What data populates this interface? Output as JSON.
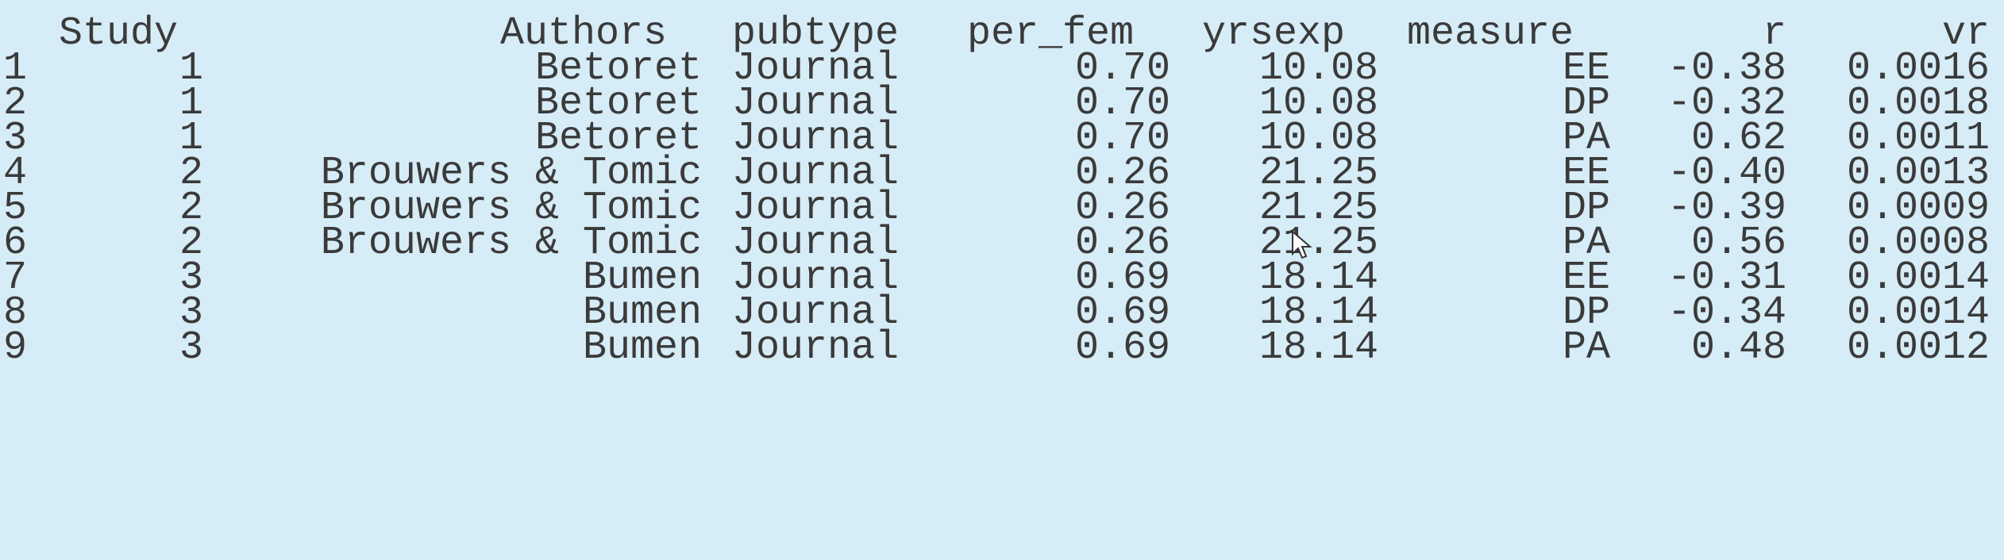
{
  "table": {
    "headers": {
      "study": "Study",
      "authors": "Authors",
      "pubtype": "pubtype",
      "per_fem": "per_fem",
      "yrsexp": "yrsexp",
      "measure": "measure",
      "r": "r",
      "vr": "vr"
    },
    "rows": [
      {
        "n": "1",
        "study": "1",
        "authors": "Betoret",
        "pubtype": "Journal",
        "per_fem": "0.70",
        "yrsexp": "10.08",
        "measure": "EE",
        "r": "-0.38",
        "vr": "0.0016"
      },
      {
        "n": "2",
        "study": "1",
        "authors": "Betoret",
        "pubtype": "Journal",
        "per_fem": "0.70",
        "yrsexp": "10.08",
        "measure": "DP",
        "r": "-0.32",
        "vr": "0.0018"
      },
      {
        "n": "3",
        "study": "1",
        "authors": "Betoret",
        "pubtype": "Journal",
        "per_fem": "0.70",
        "yrsexp": "10.08",
        "measure": "PA",
        "r": "0.62",
        "vr": "0.0011"
      },
      {
        "n": "4",
        "study": "2",
        "authors": "Brouwers & Tomic",
        "pubtype": "Journal",
        "per_fem": "0.26",
        "yrsexp": "21.25",
        "measure": "EE",
        "r": "-0.40",
        "vr": "0.0013"
      },
      {
        "n": "5",
        "study": "2",
        "authors": "Brouwers & Tomic",
        "pubtype": "Journal",
        "per_fem": "0.26",
        "yrsexp": "21.25",
        "measure": "DP",
        "r": "-0.39",
        "vr": "0.0009"
      },
      {
        "n": "6",
        "study": "2",
        "authors": "Brouwers & Tomic",
        "pubtype": "Journal",
        "per_fem": "0.26",
        "yrsexp": "21.25",
        "measure": "PA",
        "r": "0.56",
        "vr": "0.0008"
      },
      {
        "n": "7",
        "study": "3",
        "authors": "Bumen",
        "pubtype": "Journal",
        "per_fem": "0.69",
        "yrsexp": "18.14",
        "measure": "EE",
        "r": "-0.31",
        "vr": "0.0014"
      },
      {
        "n": "8",
        "study": "3",
        "authors": "Bumen",
        "pubtype": "Journal",
        "per_fem": "0.69",
        "yrsexp": "18.14",
        "measure": "DP",
        "r": "-0.34",
        "vr": "0.0014"
      },
      {
        "n": "9",
        "study": "3",
        "authors": "Bumen",
        "pubtype": "Journal",
        "per_fem": "0.69",
        "yrsexp": "18.14",
        "measure": "PA",
        "r": "0.48",
        "vr": "0.0012"
      }
    ]
  },
  "colors": {
    "background": "#d6ecf7",
    "text": "#3a3a3a"
  },
  "icons": {
    "cursor": "mouse-pointer-icon"
  }
}
